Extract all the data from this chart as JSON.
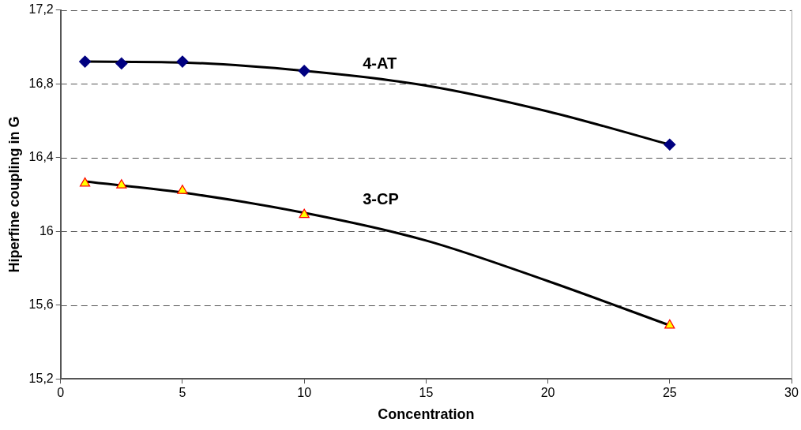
{
  "chart_data": {
    "type": "scatter",
    "xlabel": "Concentration",
    "ylabel": "Hiperfine coupling in G",
    "xlim": [
      0,
      30
    ],
    "xticks": [
      0,
      5,
      10,
      15,
      20,
      25,
      30
    ],
    "ylim": [
      15.2,
      17.2
    ],
    "yticks": [
      {
        "value": 15.2,
        "label": "15,2"
      },
      {
        "value": 15.6,
        "label": "15,6"
      },
      {
        "value": 16,
        "label": "16"
      },
      {
        "value": 16.4,
        "label": "16,4"
      },
      {
        "value": 16.8,
        "label": "16,8"
      },
      {
        "value": 17.2,
        "label": "17,2"
      }
    ],
    "grid": "y",
    "legend": false,
    "series": [
      {
        "name": "4-AT",
        "type": "line",
        "color": "#000000",
        "marker": "none",
        "x": [
          1,
          5,
          10,
          15,
          20,
          25
        ],
        "values": [
          16.92,
          16.915,
          16.87,
          16.79,
          16.65,
          16.47
        ]
      },
      {
        "name": "3-CP",
        "type": "line",
        "color": "#000000",
        "marker": "none",
        "x": [
          1,
          5,
          10,
          15,
          20,
          25
        ],
        "values": [
          16.27,
          16.21,
          16.1,
          15.95,
          15.73,
          15.49
        ]
      },
      {
        "color": "#000080",
        "marker": "diamond",
        "x": [
          1,
          2.5,
          5,
          10,
          25
        ],
        "values": [
          16.92,
          16.91,
          16.92,
          16.87,
          16.47
        ]
      },
      {
        "color": "#ffff00",
        "marker": "triangle",
        "x": [
          1,
          2.5,
          5,
          10,
          25
        ],
        "values": [
          16.26,
          16.25,
          16.22,
          16.09,
          15.49
        ]
      }
    ]
  }
}
